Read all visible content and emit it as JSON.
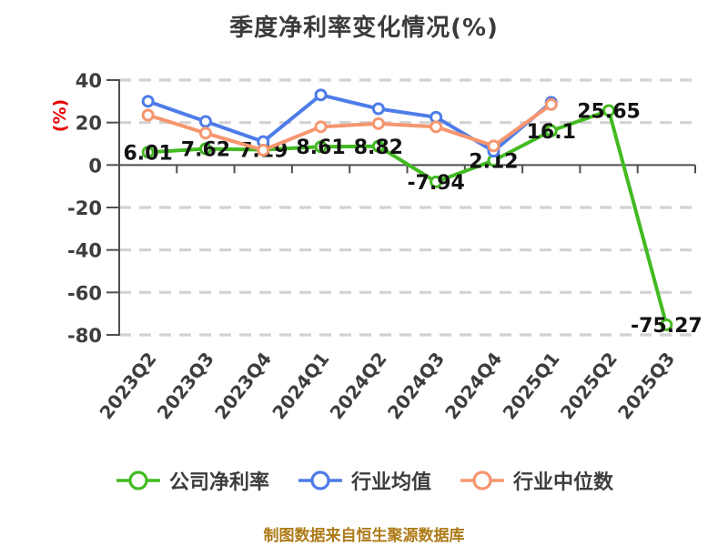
{
  "page": {
    "footer": "制图数据来自恒生聚源数据库"
  },
  "colors": {
    "company_green": "#43ba22",
    "industry_avg_blue": "#4e7ce8",
    "industry_median_orange": "#f5966f",
    "axis_text": "#3d3d3d",
    "axis_line": "#4f4f4f",
    "grid_line": "#d2d2d2",
    "data_label": "#121212",
    "y_unit_red": "#e80000",
    "footer_gold": "#ad7a17",
    "background": "#ffffff"
  },
  "chart_data": {
    "type": "line",
    "title": "季度净利率变化情况(%)",
    "ylabel": "(%)",
    "xlabel": "",
    "ylim": [
      -80,
      40
    ],
    "yticks": [
      40,
      20,
      0,
      -20,
      -40,
      -60,
      -80
    ],
    "grid": "horizontal dashed",
    "legend_position": "bottom",
    "marker_style": "white-filled circle with colored ring",
    "categories": [
      "2023Q2",
      "2023Q3",
      "2023Q4",
      "2024Q1",
      "2024Q2",
      "2024Q3",
      "2024Q4",
      "2025Q1",
      "2025Q2",
      "2025Q3"
    ],
    "series": [
      {
        "name": "公司净利率",
        "color_key": "company_green",
        "values": [
          6.01,
          7.62,
          7.19,
          8.61,
          8.82,
          -7.94,
          2.12,
          16.1,
          25.65,
          -75.27
        ],
        "point_labels": [
          "6.01",
          "7.62",
          "7.19",
          "8.61",
          "8.82",
          "-7.94",
          "2.12",
          "16.1",
          "25.65",
          "-75.27"
        ]
      },
      {
        "name": "行业均值",
        "color_key": "industry_avg_blue",
        "values": [
          30,
          20.5,
          11,
          33,
          26.5,
          22.5,
          6.5,
          29.5,
          null,
          null
        ]
      },
      {
        "name": "行业中位数",
        "color_key": "industry_median_orange",
        "values": [
          23.5,
          15,
          7,
          18,
          19.5,
          18,
          9,
          28.5,
          null,
          null
        ]
      }
    ]
  }
}
